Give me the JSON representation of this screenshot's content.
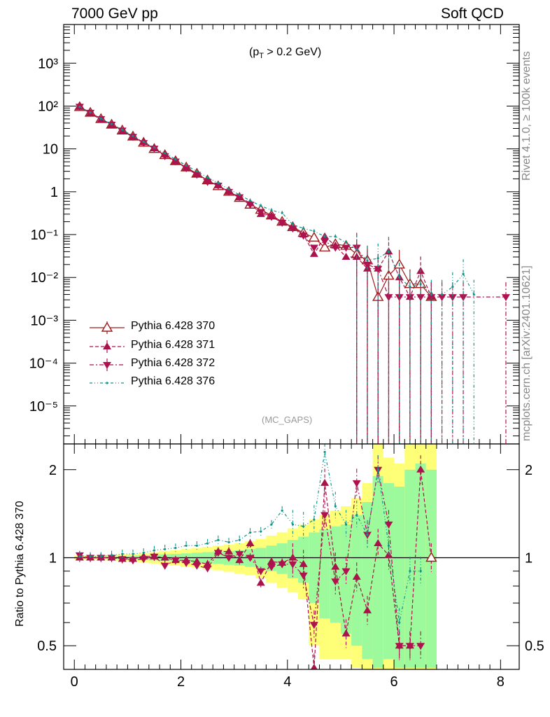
{
  "header": {
    "left": "7000 GeV pp",
    "right": "Soft QCD"
  },
  "side_labels": {
    "rivet": "Rivet 4.1.0, ≥ 100k events",
    "mcplots": "mcplots.cern.ch [arXiv:2401.10621]"
  },
  "annotations": {
    "cut_label": "(pₜ > 0.2 GeV)",
    "cut_pre": "(p",
    "cut_sub": "T",
    "cut_post": " > 0.2 GeV)",
    "analysis": "(MC_GAPS)"
  },
  "colors": {
    "s370": "#9e1b1b",
    "s371": "#a8134a",
    "s372": "#b0124f",
    "s376": "#12948a",
    "band_yellow": "#ffff77",
    "band_green": "#9cfa9c"
  },
  "chart_data": [
    {
      "type": "line",
      "panel": "main",
      "yscale": "log",
      "xlim": [
        -0.2,
        8.35
      ],
      "ylim": [
        1.3e-06,
        8000
      ],
      "yticks": [
        "10⁻⁵",
        "10⁻⁴",
        "10⁻³",
        "10⁻²",
        "10⁻¹",
        "1",
        "10",
        "10²",
        "10³"
      ],
      "ytick_values": [
        1e-05,
        0.0001,
        0.001,
        0.01,
        0.1,
        1,
        10,
        100,
        1000
      ],
      "legend": [
        "Pythia 6.428 370",
        "Pythia 6.428 371",
        "Pythia 6.428 372",
        "Pythia 6.428 376"
      ],
      "legend_position": "bottom-left",
      "series": [
        {
          "name": "Pythia 6.428 370",
          "style": "open-triangle-up solid",
          "x": [
            0.1,
            0.3,
            0.5,
            0.7,
            0.9,
            1.1,
            1.3,
            1.5,
            1.7,
            1.9,
            2.1,
            2.3,
            2.5,
            2.7,
            2.9,
            3.1,
            3.3,
            3.5,
            3.7,
            3.9,
            4.1,
            4.3,
            4.5,
            4.7,
            4.9,
            5.1,
            5.3,
            5.5,
            5.7,
            5.9,
            6.1,
            6.3,
            6.5,
            6.7
          ],
          "y": [
            95,
            70,
            50,
            37,
            27,
            19.5,
            14,
            10,
            7.2,
            5.2,
            3.7,
            2.65,
            1.85,
            1.35,
            1.0,
            0.72,
            0.5,
            0.38,
            0.28,
            0.2,
            0.15,
            0.11,
            0.085,
            0.05,
            0.06,
            0.055,
            0.035,
            0.025,
            0.0035,
            0.011,
            0.02,
            0.007,
            0.007,
            0.0035
          ]
        },
        {
          "name": "Pythia 6.428 371",
          "style": "filled-triangle-up dashed",
          "x": [
            0.1,
            0.3,
            0.5,
            0.7,
            0.9,
            1.1,
            1.3,
            1.5,
            1.7,
            1.9,
            2.1,
            2.3,
            2.5,
            2.7,
            2.9,
            3.1,
            3.3,
            3.5,
            3.7,
            3.9,
            4.1,
            4.3,
            4.5,
            4.7,
            4.9,
            5.1,
            5.3,
            5.5,
            5.7,
            5.9,
            6.1,
            6.3,
            6.5,
            6.7
          ],
          "y": [
            95,
            68,
            48,
            36,
            26,
            19,
            14.2,
            10.2,
            7.4,
            5.1,
            3.6,
            2.6,
            1.82,
            1.4,
            1.0,
            0.73,
            0.55,
            0.3,
            0.27,
            0.19,
            0.15,
            0.1,
            0.035,
            0.09,
            0.055,
            0.03,
            0.03,
            0.016,
            0.016,
            0.04,
            0.01,
            0.0035,
            0.014,
            0.0035
          ]
        },
        {
          "name": "Pythia 6.428 372",
          "style": "filled-triangle-down dashdot",
          "x": [
            0.1,
            0.3,
            0.5,
            0.7,
            0.9,
            1.1,
            1.3,
            1.5,
            1.7,
            1.9,
            2.1,
            2.3,
            2.5,
            2.7,
            2.9,
            3.1,
            3.3,
            3.5,
            3.7,
            3.9,
            4.1,
            4.3,
            4.5,
            4.7,
            4.9,
            5.1,
            5.3,
            5.5,
            5.7,
            5.9,
            6.1,
            6.3,
            6.5,
            6.7,
            6.9,
            7.1,
            7.3,
            8.1
          ],
          "y": [
            97,
            70,
            50,
            37,
            27,
            19.2,
            13.8,
            10.2,
            6.8,
            5.1,
            3.55,
            2.5,
            1.7,
            1.4,
            1.0,
            0.75,
            0.5,
            0.34,
            0.26,
            0.19,
            0.14,
            0.095,
            0.05,
            0.07,
            0.05,
            0.05,
            0.05,
            0.02,
            0.016,
            0.0035,
            0.0035,
            0.0035,
            0.0035,
            0.0035,
            0.0035,
            0.0035,
            0.0035,
            0.0035
          ]
        },
        {
          "name": "Pythia 6.428 376",
          "style": "dot dash-dot-dot",
          "x": [
            0.1,
            0.3,
            0.5,
            0.7,
            0.9,
            1.1,
            1.3,
            1.5,
            1.7,
            1.9,
            2.1,
            2.3,
            2.5,
            2.7,
            2.9,
            3.1,
            3.3,
            3.5,
            3.7,
            3.9,
            4.1,
            4.3,
            4.5,
            4.7,
            4.9,
            5.1,
            5.3,
            5.5,
            5.7,
            5.9,
            6.1,
            6.3,
            6.5,
            6.7,
            6.9,
            7.1,
            7.3,
            7.5
          ],
          "y": [
            96,
            71,
            51,
            38,
            28,
            20,
            14.7,
            10.8,
            7.9,
            5.7,
            4.1,
            3.0,
            2.15,
            1.6,
            1.15,
            0.85,
            0.62,
            0.47,
            0.37,
            0.32,
            0.17,
            0.14,
            0.12,
            0.09,
            0.09,
            0.065,
            0.045,
            0.025,
            0.028,
            0.04,
            0.01,
            0.006,
            0.007,
            0.004,
            0.004,
            0.006,
            0.012,
            0.004
          ]
        }
      ]
    },
    {
      "type": "line",
      "panel": "ratio",
      "yscale": "log",
      "ylabel": "Ratio to Pythia 6.428 370",
      "xlim": [
        -0.2,
        8.35
      ],
      "ylim": [
        0.415,
        2.45
      ],
      "xticks": [
        0,
        2,
        4,
        6,
        8
      ],
      "yticks": [
        0.5,
        1,
        2
      ],
      "reference_line": 1,
      "uncertainty_band": {
        "x_edges": [
          0,
          0.2,
          0.4,
          0.6,
          0.8,
          1.0,
          1.2,
          1.4,
          1.6,
          1.8,
          2.0,
          2.2,
          2.4,
          2.6,
          2.8,
          3.0,
          3.2,
          3.4,
          3.6,
          3.8,
          4.0,
          4.2,
          4.4,
          4.6,
          4.8,
          5.0,
          5.2,
          5.4,
          5.6,
          5.8,
          6.0,
          6.2,
          6.4,
          6.6,
          6.8
        ],
        "yellow_low": [
          0.985,
          0.982,
          0.98,
          0.978,
          0.975,
          0.97,
          0.965,
          0.955,
          0.945,
          0.94,
          0.93,
          0.925,
          0.915,
          0.905,
          0.895,
          0.88,
          0.87,
          0.85,
          0.82,
          0.79,
          0.76,
          0.72,
          0.5,
          0.45,
          0.45,
          0.45,
          0.42,
          0.4,
          0.4,
          0.4,
          0.4,
          0.4,
          0.4,
          0.4
        ],
        "yellow_high": [
          1.015,
          1.018,
          1.02,
          1.022,
          1.025,
          1.03,
          1.035,
          1.045,
          1.055,
          1.06,
          1.07,
          1.08,
          1.09,
          1.1,
          1.11,
          1.12,
          1.14,
          1.16,
          1.19,
          1.22,
          1.26,
          1.3,
          1.35,
          1.4,
          1.45,
          1.5,
          1.6,
          1.8,
          2.45,
          2.2,
          2.1,
          2.45,
          2.45,
          2.45
        ],
        "green_low": [
          0.992,
          0.991,
          0.99,
          0.989,
          0.988,
          0.985,
          0.982,
          0.978,
          0.972,
          0.97,
          0.965,
          0.962,
          0.956,
          0.952,
          0.945,
          0.94,
          0.93,
          0.92,
          0.9,
          0.88,
          0.85,
          0.82,
          0.7,
          0.62,
          0.6,
          0.55,
          0.5,
          0.45,
          0.42,
          0.45,
          0.42,
          0.42,
          0.42,
          0.42
        ],
        "green_high": [
          1.008,
          1.009,
          1.01,
          1.011,
          1.012,
          1.015,
          1.018,
          1.022,
          1.028,
          1.03,
          1.035,
          1.04,
          1.045,
          1.05,
          1.055,
          1.06,
          1.07,
          1.08,
          1.1,
          1.12,
          1.15,
          1.18,
          1.22,
          1.25,
          1.28,
          1.3,
          1.4,
          1.55,
          1.9,
          1.8,
          1.75,
          2.0,
          2.1,
          2.0
        ]
      },
      "series": [
        {
          "name": "Pythia 6.428 370",
          "x": [
            0.1,
            6.7
          ],
          "y": [
            1.0,
            1.0
          ]
        },
        {
          "name": "Pythia 6.428 371",
          "x": [
            0.1,
            0.3,
            0.5,
            0.7,
            0.9,
            1.1,
            1.3,
            1.5,
            1.7,
            1.9,
            2.1,
            2.3,
            2.5,
            2.7,
            2.9,
            3.1,
            3.3,
            3.5,
            3.7,
            3.9,
            4.1,
            4.3,
            4.5,
            4.7,
            4.9,
            5.1,
            5.3,
            5.5,
            5.7,
            5.9,
            6.1,
            6.3,
            6.5,
            6.7
          ],
          "y": [
            1.0,
            1.0,
            1.0,
            1.0,
            0.99,
            0.99,
            1.01,
            1.01,
            1.0,
            0.98,
            0.98,
            0.97,
            0.95,
            1.05,
            1.05,
            0.98,
            1.12,
            0.82,
            0.97,
            0.96,
            1.0,
            0.95,
            0.42,
            1.8,
            0.93,
            0.55,
            0.86,
            0.66,
            1.12,
            1.02,
            0.5,
            0.5,
            2.0,
            1.0
          ]
        },
        {
          "name": "Pythia 6.428 372",
          "x": [
            0.1,
            0.3,
            0.5,
            0.7,
            0.9,
            1.1,
            1.3,
            1.5,
            1.7,
            1.9,
            2.1,
            2.3,
            2.5,
            2.7,
            2.9,
            3.1,
            3.3,
            3.5,
            3.7,
            3.9,
            4.1,
            4.3,
            4.5,
            4.7,
            4.9,
            5.1,
            5.3,
            5.5,
            5.7,
            5.9,
            6.1,
            6.3,
            6.5
          ],
          "y": [
            1.02,
            1.0,
            1.0,
            1.0,
            0.99,
            0.98,
            0.99,
            1.01,
            0.94,
            0.98,
            0.96,
            0.94,
            0.92,
            1.04,
            1.0,
            1.03,
            1.0,
            0.9,
            0.93,
            0.95,
            0.95,
            0.87,
            0.59,
            1.4,
            0.83,
            0.9,
            1.8,
            1.2,
            2.0,
            1.3,
            0.5,
            0.5,
            0.5
          ]
        },
        {
          "name": "Pythia 6.428 376",
          "x": [
            0.1,
            0.3,
            0.5,
            0.7,
            0.9,
            1.1,
            1.3,
            1.5,
            1.7,
            1.9,
            2.1,
            2.3,
            2.5,
            2.7,
            2.9,
            3.1,
            3.3,
            3.5,
            3.7,
            3.9,
            4.1,
            4.3,
            4.5,
            4.7,
            4.9,
            5.1,
            5.3,
            5.5,
            5.7,
            5.9,
            6.1,
            6.3,
            6.5
          ],
          "y": [
            1.01,
            1.01,
            1.01,
            1.02,
            1.03,
            1.03,
            1.04,
            1.06,
            1.07,
            1.08,
            1.1,
            1.1,
            1.12,
            1.15,
            1.13,
            1.15,
            1.22,
            1.23,
            1.3,
            1.45,
            1.3,
            1.28,
            1.35,
            2.3,
            1.5,
            1.3,
            1.4,
            1.2,
            2.0,
            1.1,
            0.6,
            0.9,
            0.9
          ]
        }
      ]
    }
  ]
}
